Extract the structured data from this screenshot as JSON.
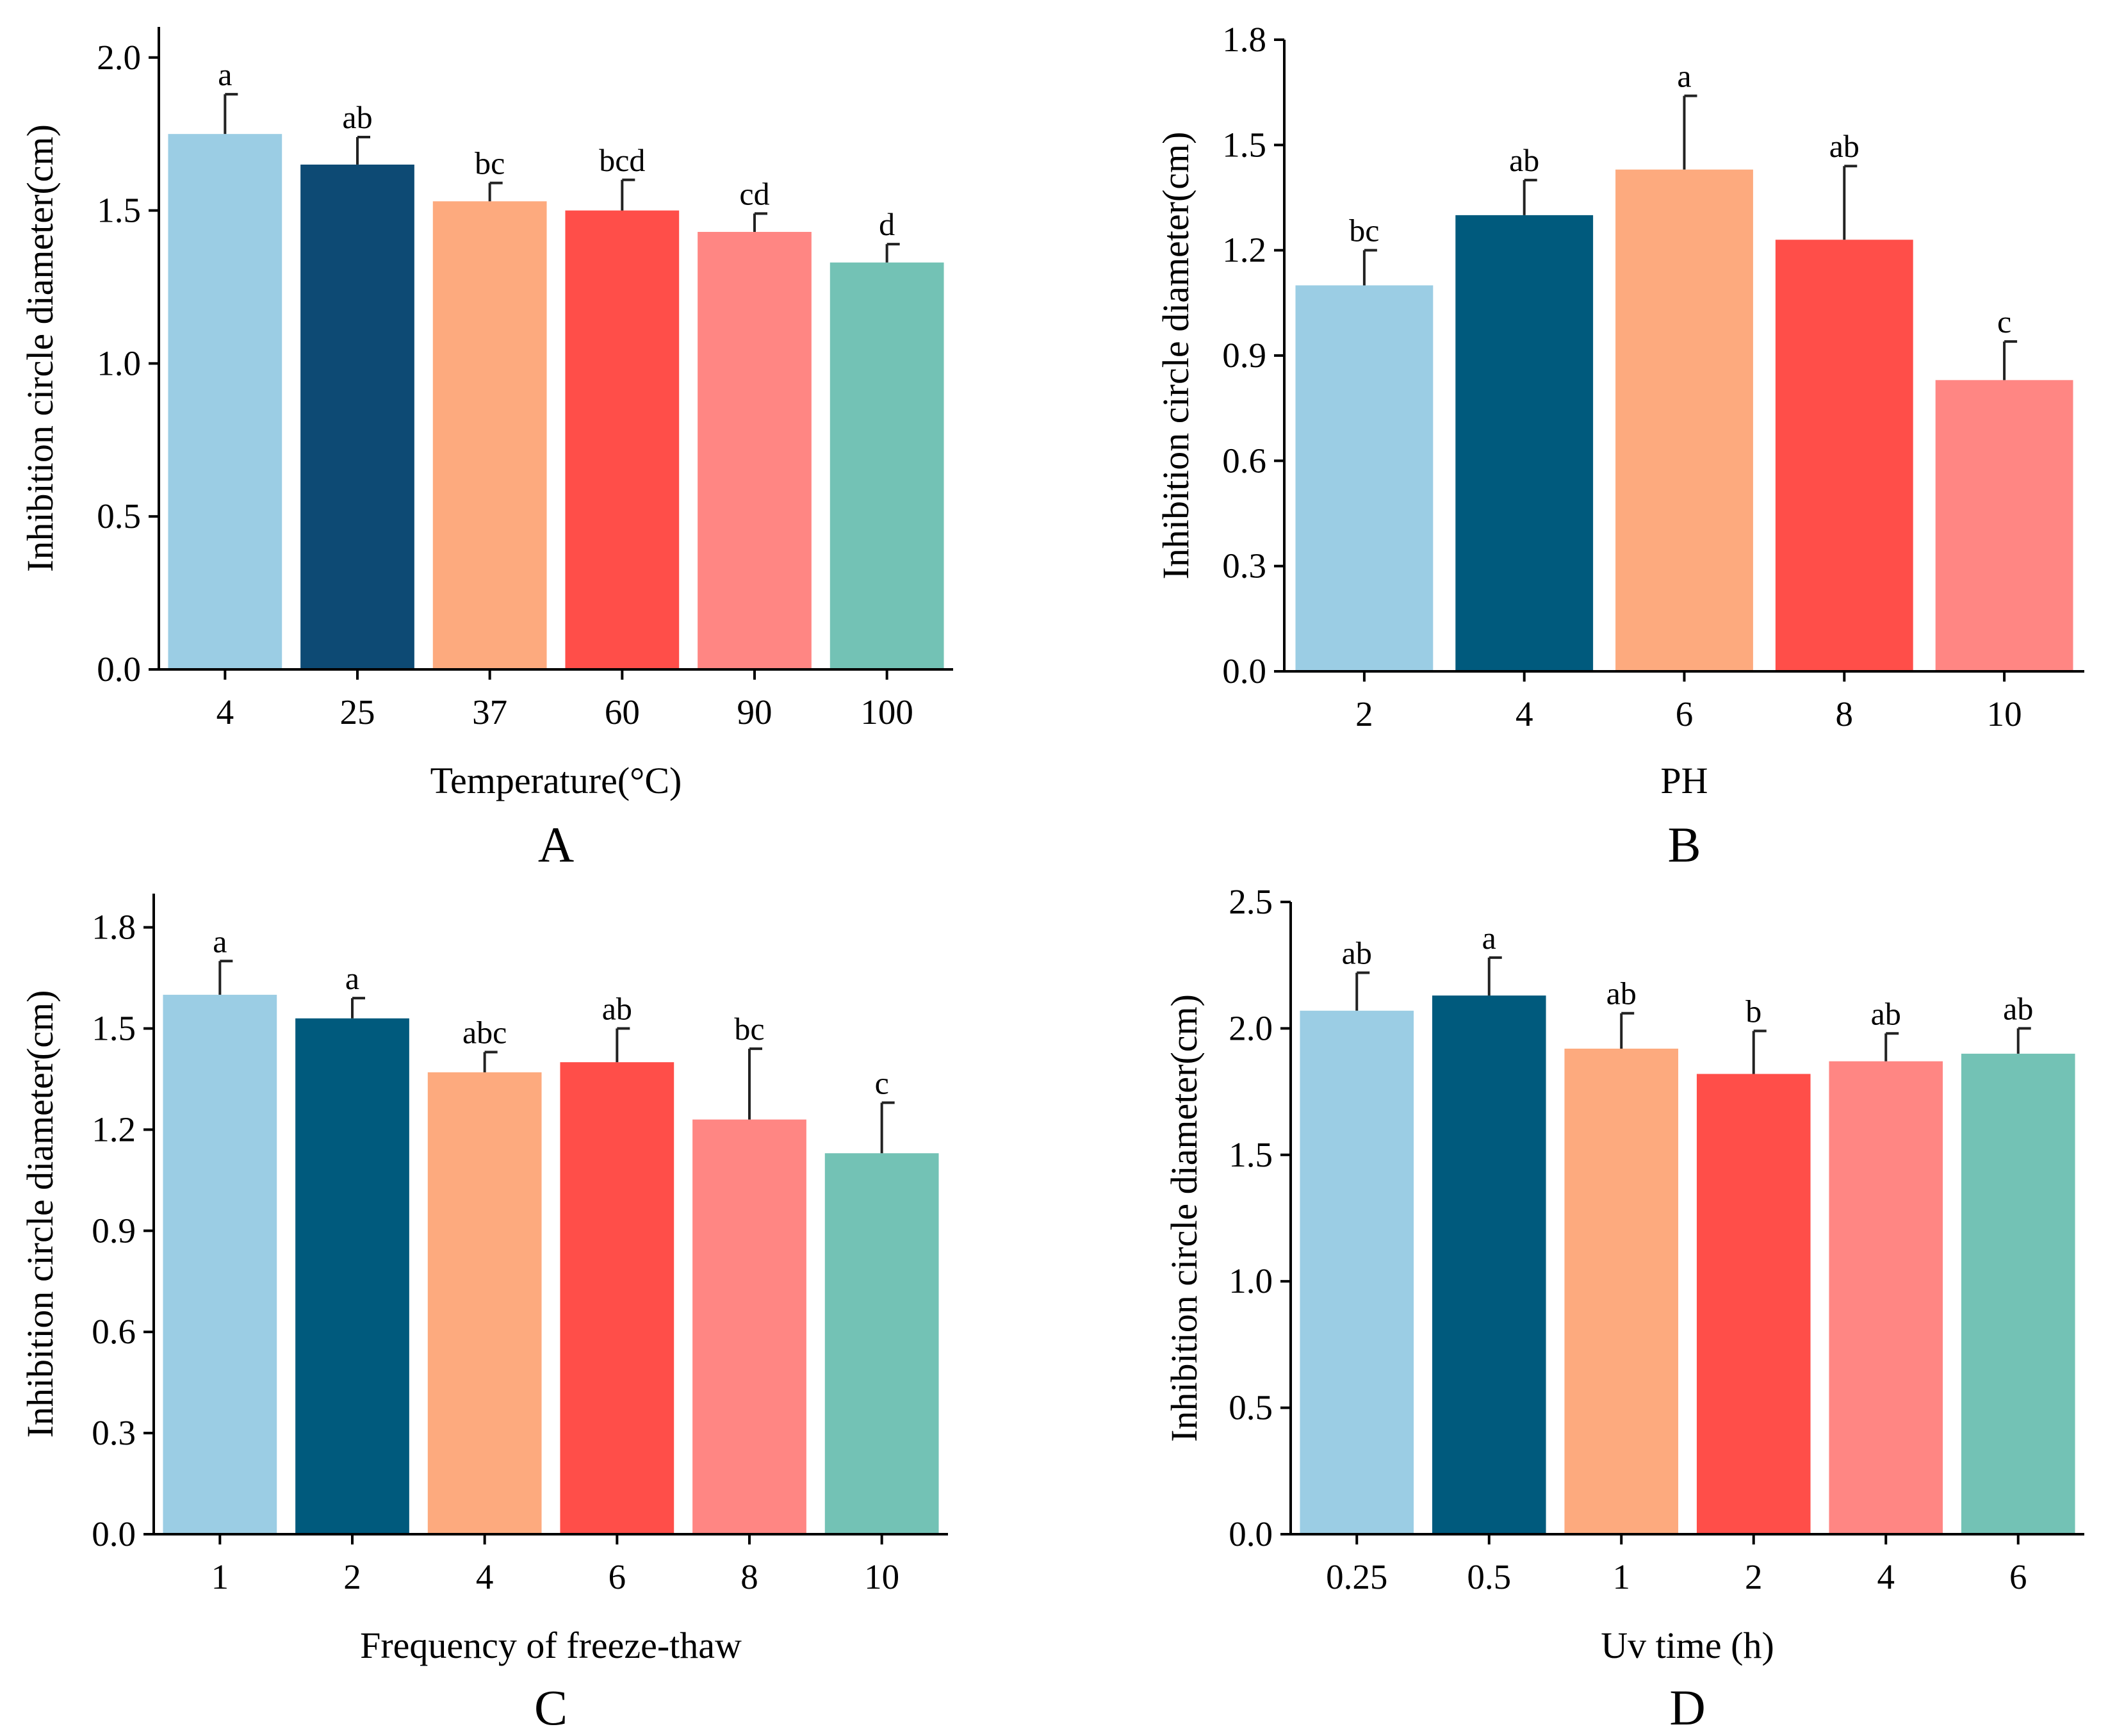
{
  "figure": {
    "panels": [
      "A",
      "B",
      "C",
      "D"
    ]
  },
  "chart_data": [
    {
      "panel": "A",
      "type": "bar",
      "xlabel": "Temperature(°C)",
      "ylabel": "Inhibition circle diameter(cm)",
      "categories": [
        "4",
        "25",
        "37",
        "60",
        "90",
        "100"
      ],
      "values": [
        1.75,
        1.65,
        1.53,
        1.5,
        1.43,
        1.33
      ],
      "errors": [
        0.13,
        0.09,
        0.06,
        0.1,
        0.06,
        0.06
      ],
      "significance": [
        "a",
        "ab",
        "bc",
        "bcd",
        "cd",
        "d"
      ],
      "colors": [
        "#9BCDE4",
        "#0D4A74",
        "#FDAA7E",
        "#FF4E49",
        "#FF8683",
        "#73C2B5"
      ],
      "ylim": [
        0,
        2.1
      ],
      "yticks": [
        0.0,
        0.5,
        1.0,
        1.5,
        2.0
      ],
      "ytick_labels": [
        "0.0",
        "0.5",
        "1.0",
        "1.5",
        "2.0"
      ]
    },
    {
      "panel": "B",
      "type": "bar",
      "xlabel": "PH",
      "ylabel": "Inhibition circle diameter(cm)",
      "categories": [
        "2",
        "4",
        "6",
        "8",
        "10"
      ],
      "values": [
        1.1,
        1.3,
        1.43,
        1.23,
        0.83
      ],
      "errors": [
        0.1,
        0.1,
        0.21,
        0.21,
        0.11
      ],
      "significance": [
        "bc",
        "ab",
        "a",
        "ab",
        "c"
      ],
      "colors": [
        "#9BCDE4",
        "#005A7D",
        "#FDAA7E",
        "#FF4E49",
        "#FF8683"
      ],
      "ylim": [
        0,
        1.8
      ],
      "yticks": [
        0.0,
        0.3,
        0.6,
        0.9,
        1.2,
        1.5,
        1.8
      ],
      "ytick_labels": [
        "0.0",
        "0.3",
        "0.6",
        "0.9",
        "1.2",
        "1.5",
        "1.8"
      ]
    },
    {
      "panel": "C",
      "type": "bar",
      "xlabel": "Frequency of freeze-thaw",
      "ylabel": "Inhibition circle diameter(cm)",
      "categories": [
        "1",
        "2",
        "4",
        "6",
        "8",
        "10"
      ],
      "values": [
        1.6,
        1.53,
        1.37,
        1.4,
        1.23,
        1.13
      ],
      "errors": [
        0.1,
        0.06,
        0.06,
        0.1,
        0.21,
        0.15
      ],
      "significance": [
        "a",
        "a",
        "abc",
        "ab",
        "bc",
        "c"
      ],
      "colors": [
        "#9BCDE4",
        "#005A7D",
        "#FDAA7E",
        "#FF4E49",
        "#FF8683",
        "#73C2B5"
      ],
      "ylim": [
        0,
        1.9
      ],
      "yticks": [
        0.0,
        0.3,
        0.6,
        0.9,
        1.2,
        1.5,
        1.8
      ],
      "ytick_labels": [
        "0.0",
        "0.3",
        "0.6",
        "0.9",
        "1.2",
        "1.5",
        "1.8"
      ]
    },
    {
      "panel": "D",
      "type": "bar",
      "xlabel": "Uv time (h)",
      "ylabel": "Inhibition circle diameter(cm)",
      "categories": [
        "0.25",
        "0.5",
        "1",
        "2",
        "4",
        "6"
      ],
      "values": [
        2.07,
        2.13,
        1.92,
        1.82,
        1.87,
        1.9
      ],
      "errors": [
        0.15,
        0.15,
        0.14,
        0.17,
        0.11,
        0.1
      ],
      "significance": [
        "ab",
        "a",
        "ab",
        "b",
        "ab",
        "ab"
      ],
      "colors": [
        "#9BCDE4",
        "#005A7D",
        "#FDAA7E",
        "#FF4E49",
        "#FF8683",
        "#73C2B5"
      ],
      "ylim": [
        0,
        2.5
      ],
      "yticks": [
        0.0,
        0.5,
        1.0,
        1.5,
        2.0,
        2.5
      ],
      "ytick_labels": [
        "0.0",
        "0.5",
        "1.0",
        "1.5",
        "2.0",
        "2.5"
      ]
    }
  ]
}
